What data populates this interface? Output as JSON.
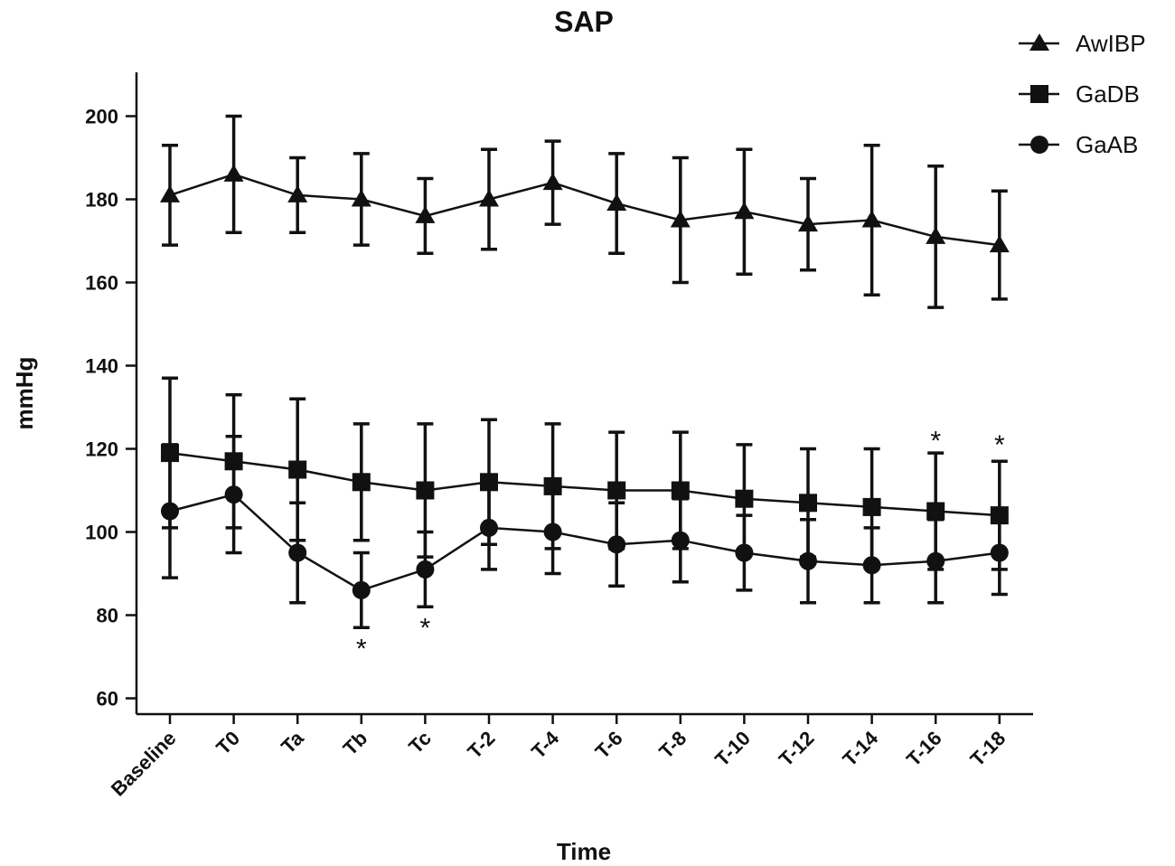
{
  "chart_data": {
    "type": "line",
    "title": "SAP",
    "xlabel": "Time",
    "ylabel": "mmHg",
    "categories": [
      "Baseline",
      "T0",
      "Ta",
      "Tb",
      "Tc",
      "T-2",
      "T-4",
      "T-6",
      "T-8",
      "T-10",
      "T-12",
      "T-14",
      "T-16",
      "T-18"
    ],
    "ylim": [
      55,
      210
    ],
    "yticks": [
      60,
      80,
      100,
      120,
      140,
      160,
      180,
      200
    ],
    "grid": false,
    "legend_position": "top-right",
    "series": [
      {
        "name": "AwIBP",
        "marker": "triangle",
        "values": [
          181,
          186,
          181,
          180,
          176,
          180,
          184,
          179,
          175,
          177,
          174,
          175,
          171,
          169
        ],
        "err_upper": [
          193,
          200,
          190,
          191,
          185,
          192,
          194,
          191,
          190,
          192,
          185,
          193,
          188,
          182
        ],
        "err_lower": [
          169,
          172,
          172,
          169,
          167,
          168,
          174,
          167,
          160,
          162,
          163,
          157,
          154,
          156
        ]
      },
      {
        "name": "GaDB",
        "marker": "square",
        "values": [
          119,
          117,
          115,
          112,
          110,
          112,
          111,
          110,
          110,
          108,
          107,
          106,
          105,
          104
        ],
        "err_upper": [
          137,
          133,
          132,
          126,
          126,
          127,
          126,
          124,
          124,
          121,
          120,
          120,
          119,
          117
        ],
        "err_lower": [
          101,
          101,
          98,
          98,
          94,
          97,
          96,
          96,
          96,
          95,
          94,
          92,
          91,
          91
        ]
      },
      {
        "name": "GaAB",
        "marker": "circle",
        "values": [
          105,
          109,
          95,
          86,
          91,
          101,
          100,
          97,
          98,
          95,
          93,
          92,
          93,
          95
        ],
        "err_upper": [
          121,
          123,
          107,
          95,
          100,
          111,
          110,
          107,
          108,
          104,
          103,
          101,
          103,
          105
        ],
        "err_lower": [
          89,
          95,
          83,
          77,
          82,
          91,
          90,
          87,
          88,
          86,
          83,
          83,
          83,
          85
        ]
      }
    ],
    "annotations": [
      {
        "text": "*",
        "category": "Tb",
        "y": 72
      },
      {
        "text": "*",
        "category": "Tc",
        "y": 77
      },
      {
        "text": "*",
        "category": "T-16",
        "y": 122
      },
      {
        "text": "*",
        "category": "T-18",
        "y": 121
      }
    ],
    "colors": {
      "ink": "#111111",
      "background": "#ffffff"
    }
  }
}
